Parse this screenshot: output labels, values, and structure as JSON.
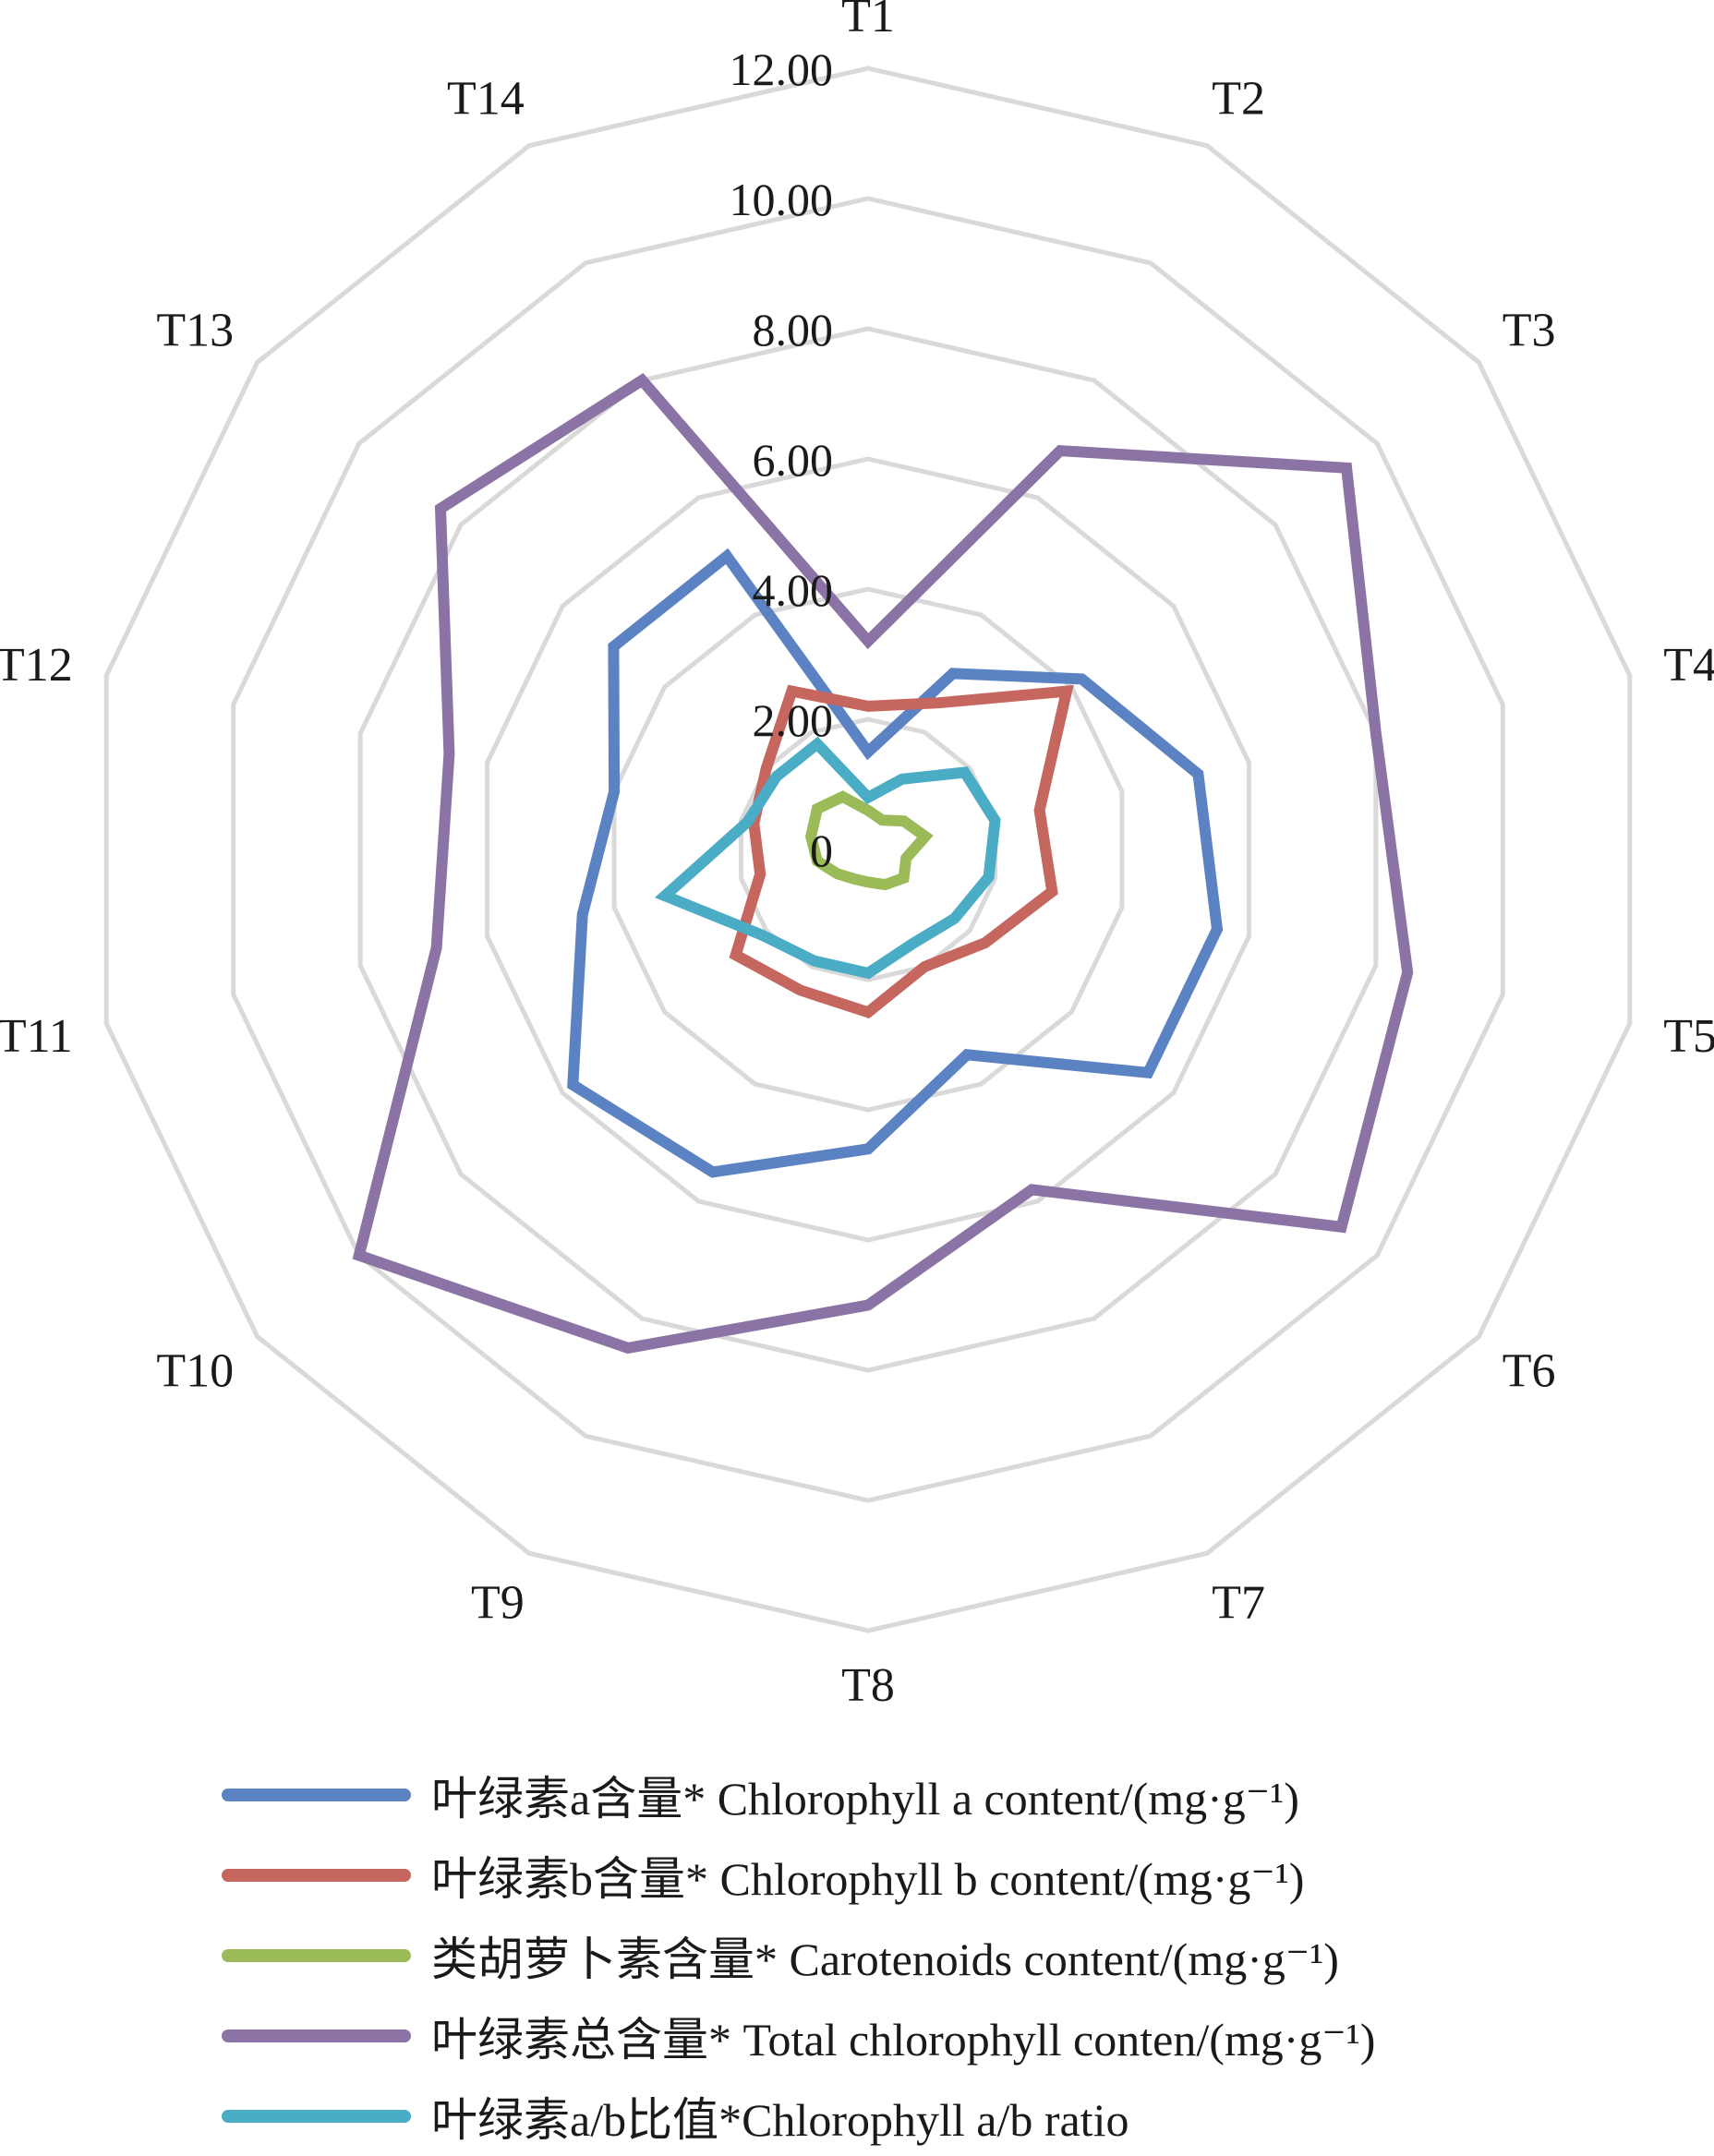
{
  "chart_data": {
    "type": "radar",
    "categories": [
      "T1",
      "T2",
      "T3",
      "T4",
      "T5",
      "T6",
      "T7",
      "T8",
      "T9",
      "T10",
      "T11",
      "T12",
      "T13",
      "T14"
    ],
    "tick_labels": [
      "0",
      "2.00",
      "4.00",
      "6.00",
      "8.00",
      "10.00",
      "12.00"
    ],
    "r_range": [
      0,
      12
    ],
    "grid": true,
    "legend_position": "bottom",
    "series": [
      {
        "name": "叶绿素a含量* Chlorophyll a content/(mg·g⁻¹)",
        "color": "#5B82C2",
        "values": [
          1.5,
          3.0,
          4.2,
          5.2,
          5.5,
          5.5,
          3.5,
          4.6,
          5.5,
          5.8,
          4.5,
          4.0,
          5.0,
          5.0
        ]
      },
      {
        "name": "叶绿素b含量* Chlorophyll b content/(mg·g⁻¹)",
        "color": "#C5665F",
        "values": [
          2.2,
          2.5,
          3.9,
          2.7,
          2.9,
          2.3,
          2.0,
          2.5,
          2.4,
          2.6,
          1.7,
          1.8,
          2.0,
          2.7
        ]
      },
      {
        "name": "类胡萝卜素含量* Carotenoids content/(mg·g⁻¹)",
        "color": "#9BBB59",
        "values": [
          0.6,
          0.5,
          0.7,
          0.9,
          0.6,
          0.7,
          0.6,
          0.5,
          0.5,
          0.6,
          0.8,
          0.9,
          1.0,
          0.9
        ]
      },
      {
        "name": "叶绿素总含量* Total chlorophyll conten/(mg·g⁻¹)",
        "color": "#8B73A5",
        "values": [
          3.2,
          6.8,
          9.4,
          8.0,
          8.5,
          9.3,
          5.8,
          7.0,
          8.5,
          10.0,
          6.8,
          6.6,
          8.4,
          8.0
        ]
      },
      {
        "name": "叶绿素a/b比值*Chlorophyll a/b ratio",
        "color": "#4BACC6",
        "values": [
          0.8,
          1.2,
          1.9,
          2.0,
          1.9,
          1.7,
          1.6,
          1.9,
          1.9,
          2.1,
          3.2,
          1.9,
          1.8,
          1.8
        ]
      }
    ]
  }
}
